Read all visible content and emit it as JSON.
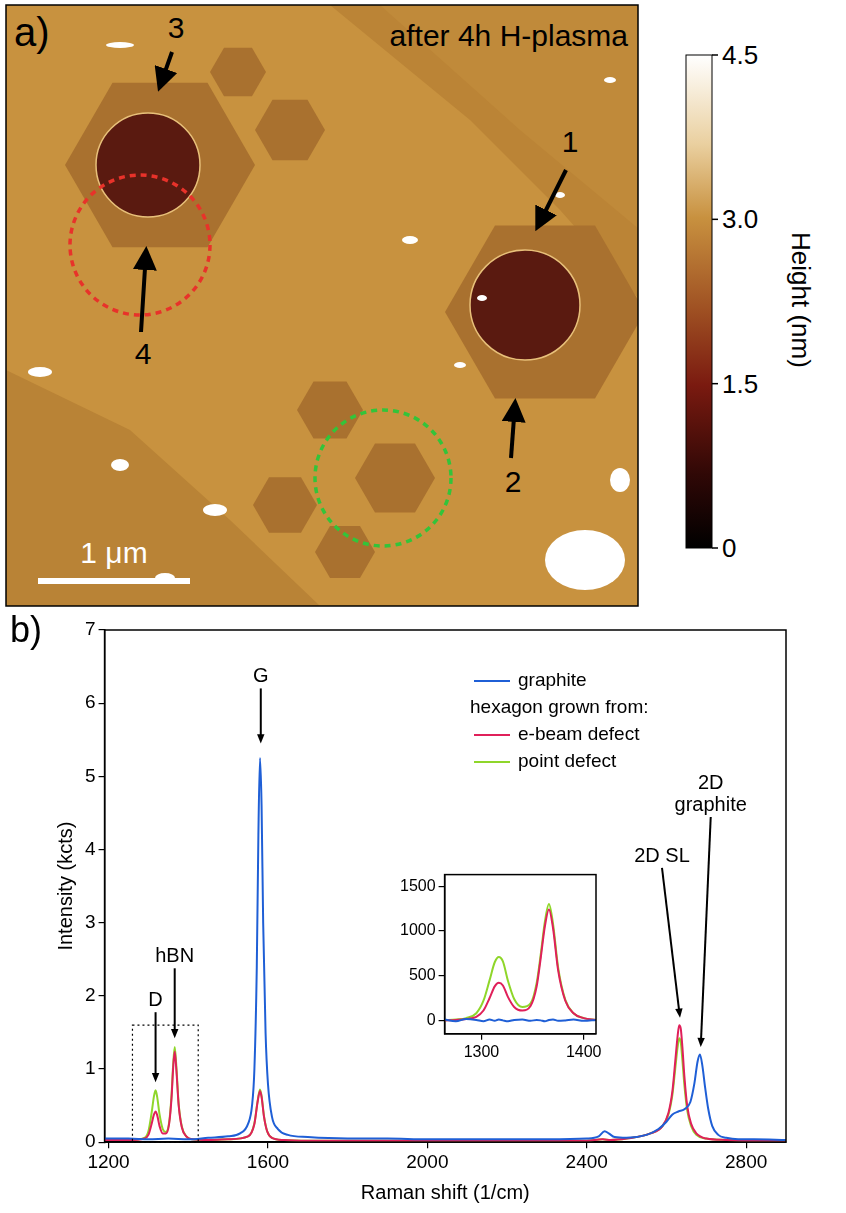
{
  "image_panel": {
    "label": "a)",
    "title": "after 4h H-plasma",
    "markers": [
      "1",
      "2",
      "3",
      "4"
    ],
    "scale_bar": "1 μm",
    "colorbar": {
      "title": "Height (nm)",
      "range": [
        0,
        4.5
      ],
      "ticks": [
        0,
        1.5,
        {
          "value": 3,
          "label": "3.0"
        },
        4.5
      ]
    }
  },
  "chart_data": [
    {
      "label": "b)",
      "type": "line",
      "x_label": "Raman shift (1/cm)",
      "y_label": "Intensity (kcts)",
      "xlim": [
        1190,
        2900
      ],
      "xticks": [
        1200,
        1600,
        2000,
        2400,
        2800
      ],
      "ylim": [
        0,
        7
      ],
      "yticks": [
        0,
        1,
        2,
        3,
        4,
        5,
        6,
        7
      ],
      "grid": false,
      "legend": "top",
      "legend_subtitle": "hexagon grown from:",
      "series": [
        {
          "name": "graphite",
          "color": "#1f5fd6",
          "x": [
            1190,
            1250,
            1300,
            1350,
            1400,
            1450,
            1500,
            1530,
            1550,
            1560,
            1566,
            1572,
            1576,
            1580,
            1584,
            1588,
            1594,
            1600,
            1610,
            1625,
            1650,
            1700,
            1800,
            1900,
            2000,
            2100,
            2200,
            2300,
            2400,
            2430,
            2445,
            2455,
            2470,
            2500,
            2550,
            2580,
            2600,
            2615,
            2630,
            2645,
            2660,
            2670,
            2678,
            2684,
            2690,
            2697,
            2705,
            2715,
            2730,
            2750,
            2780,
            2820,
            2900
          ],
          "values": [
            0.05,
            0.05,
            0.04,
            0.05,
            0.04,
            0.06,
            0.08,
            0.12,
            0.25,
            0.5,
            1,
            2.4,
            4.2,
            5.25,
            4.6,
            3,
            1.5,
            0.8,
            0.35,
            0.18,
            0.1,
            0.07,
            0.05,
            0.05,
            0.04,
            0.04,
            0.04,
            0.04,
            0.05,
            0.08,
            0.15,
            0.12,
            0.07,
            0.06,
            0.1,
            0.18,
            0.28,
            0.38,
            0.42,
            0.45,
            0.55,
            0.8,
            1.1,
            1.2,
            1.05,
            0.75,
            0.45,
            0.22,
            0.1,
            0.06,
            0.04,
            0.04,
            0.03
          ]
        },
        {
          "name": "e-beam defect",
          "color": "#e0205a",
          "x": [
            1190,
            1250,
            1290,
            1300,
            1308,
            1314,
            1318,
            1322,
            1328,
            1336,
            1344,
            1352,
            1358,
            1362,
            1366,
            1370,
            1376,
            1384,
            1395,
            1410,
            1450,
            1500,
            1550,
            1566,
            1574,
            1580,
            1584,
            1590,
            1598,
            1610,
            1640,
            1700,
            1800,
            2000,
            2200,
            2400,
            2440,
            2460,
            2500,
            2560,
            2590,
            2605,
            2615,
            2622,
            2628,
            2632,
            2636,
            2640,
            2645,
            2652,
            2662,
            2675,
            2700,
            2750,
            2800,
            2900
          ],
          "values": [
            0.03,
            0.03,
            0.05,
            0.1,
            0.25,
            0.38,
            0.42,
            0.37,
            0.22,
            0.12,
            0.12,
            0.25,
            0.6,
            1,
            1.24,
            1,
            0.5,
            0.2,
            0.08,
            0.04,
            0.03,
            0.04,
            0.08,
            0.25,
            0.55,
            0.7,
            0.62,
            0.35,
            0.15,
            0.06,
            0.03,
            0.02,
            0.02,
            0.02,
            0.02,
            0.02,
            0.04,
            0.03,
            0.05,
            0.12,
            0.22,
            0.4,
            0.7,
            1.1,
            1.45,
            1.6,
            1.55,
            1.3,
            0.9,
            0.5,
            0.25,
            0.12,
            0.05,
            0.03,
            0.02,
            0.02
          ]
        },
        {
          "name": "point defect",
          "color": "#8fd62a",
          "x": [
            1190,
            1250,
            1290,
            1300,
            1308,
            1314,
            1318,
            1322,
            1328,
            1336,
            1344,
            1352,
            1358,
            1362,
            1366,
            1370,
            1376,
            1384,
            1395,
            1410,
            1450,
            1500,
            1550,
            1566,
            1574,
            1580,
            1584,
            1590,
            1598,
            1610,
            1640,
            1700,
            1800,
            2000,
            2200,
            2400,
            2440,
            2460,
            2500,
            2560,
            2590,
            2605,
            2615,
            2622,
            2628,
            2632,
            2636,
            2640,
            2645,
            2652,
            2662,
            2675,
            2700,
            2750,
            2800,
            2900
          ],
          "values": [
            0.03,
            0.03,
            0.06,
            0.15,
            0.4,
            0.63,
            0.71,
            0.62,
            0.38,
            0.18,
            0.14,
            0.27,
            0.64,
            1.05,
            1.3,
            1.05,
            0.52,
            0.21,
            0.08,
            0.04,
            0.03,
            0.04,
            0.08,
            0.26,
            0.56,
            0.72,
            0.63,
            0.36,
            0.15,
            0.06,
            0.03,
            0.02,
            0.02,
            0.02,
            0.02,
            0.02,
            0.04,
            0.03,
            0.05,
            0.12,
            0.22,
            0.38,
            0.65,
            1,
            1.3,
            1.42,
            1.36,
            1.12,
            0.78,
            0.44,
            0.22,
            0.1,
            0.05,
            0.03,
            0.02,
            0.02
          ]
        }
      ],
      "annotations": [
        {
          "text": [
            "G"
          ],
          "x": 1582,
          "y": 5.45
        },
        {
          "text": [
            "D"
          ],
          "x": 1318,
          "y": 0.82
        },
        {
          "text": [
            "hBN"
          ],
          "x": 1366,
          "y": 1.42
        },
        {
          "text": [
            "2D SL"
          ],
          "x": 2634,
          "y": 1.7
        },
        {
          "text": [
            "2D",
            "graphite"
          ],
          "x": 2686,
          "y": 1.3
        }
      ],
      "highlight_box": {
        "x": [
          1260,
          1425
        ],
        "y": [
          0,
          1.6
        ]
      }
    },
    {
      "type": "line",
      "xlim": [
        1264,
        1412
      ],
      "xticks": [
        1300,
        1400
      ],
      "ylim": [
        -150,
        1630
      ],
      "yticks": [
        0,
        500,
        1000,
        1500
      ],
      "grid": false,
      "series": [
        {
          "color": "#1f5fd6",
          "x": [
            1264,
            1275,
            1285,
            1295,
            1302,
            1308,
            1313,
            1317,
            1321,
            1326,
            1332,
            1340,
            1348,
            1354,
            1358,
            1362,
            1366,
            1370,
            1375,
            1382,
            1390,
            1400,
            1412
          ],
          "values": [
            10,
            -10,
            15,
            5,
            -10,
            10,
            -5,
            10,
            0,
            -10,
            5,
            10,
            -5,
            5,
            0,
            -10,
            5,
            10,
            -5,
            0,
            10,
            -5,
            5
          ]
        },
        {
          "color": "#e0205a",
          "x": [
            1264,
            1275,
            1285,
            1295,
            1302,
            1308,
            1313,
            1317,
            1321,
            1326,
            1332,
            1340,
            1348,
            1354,
            1358,
            1362,
            1366,
            1370,
            1375,
            1382,
            1390,
            1400,
            1412
          ],
          "values": [
            0,
            5,
            15,
            40,
            110,
            250,
            380,
            420,
            390,
            260,
            150,
            110,
            160,
            380,
            700,
            1050,
            1240,
            1030,
            560,
            220,
            80,
            25,
            5
          ]
        },
        {
          "color": "#8fd62a",
          "x": [
            1264,
            1275,
            1285,
            1295,
            1302,
            1308,
            1313,
            1317,
            1321,
            1326,
            1332,
            1340,
            1348,
            1354,
            1358,
            1362,
            1366,
            1370,
            1375,
            1382,
            1390,
            1400,
            1412
          ],
          "values": [
            0,
            10,
            25,
            80,
            220,
            450,
            650,
            710,
            660,
            440,
            240,
            150,
            190,
            420,
            740,
            1100,
            1300,
            1080,
            590,
            230,
            80,
            25,
            5
          ]
        }
      ]
    }
  ]
}
